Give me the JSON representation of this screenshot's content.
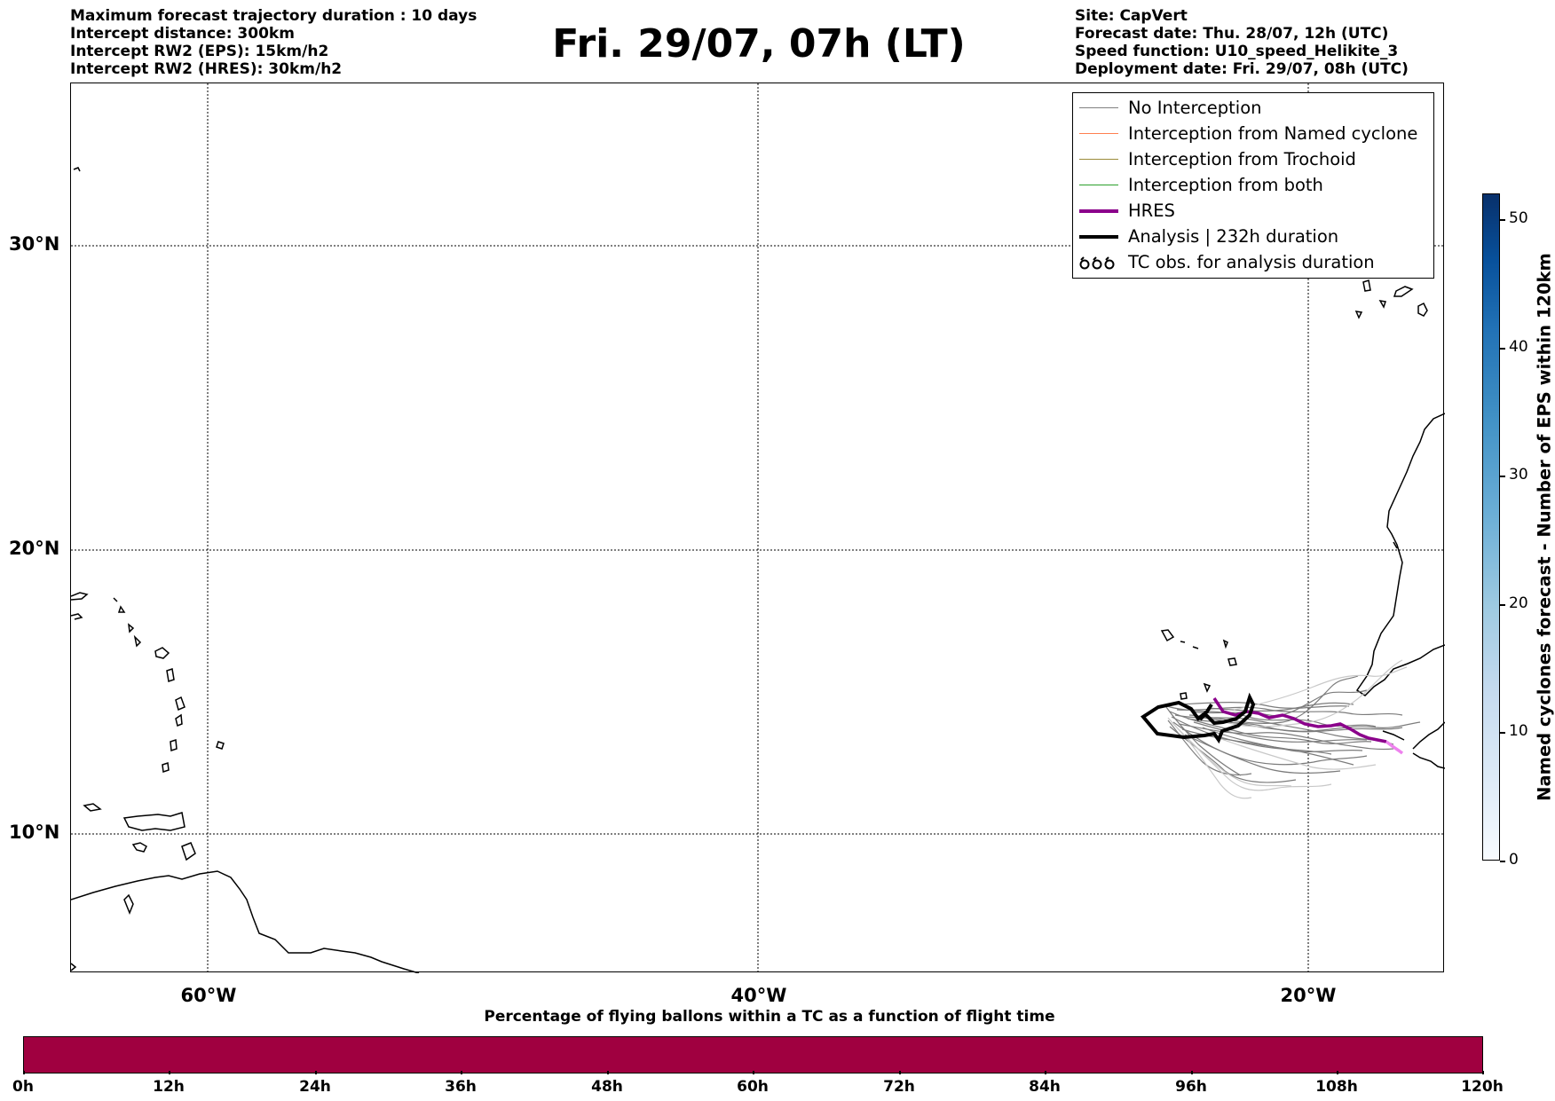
{
  "header": {
    "left": [
      "Maximum forecast trajectory duration : 10 days",
      "Intercept distance: 300km",
      "Intercept RW2 (EPS):  15km/h2",
      "Intercept RW2 (HRES): 30km/h2"
    ],
    "title": "Fri. 29/07, 07h (LT)",
    "right": [
      "Site: CapVert",
      "Forecast date: Thu. 28/07, 12h (UTC)",
      "Speed function: U10_speed_Helikite_3",
      "Deployment date: Fri. 29/07, 08h (UTC)"
    ]
  },
  "map": {
    "lat_labels": [
      "30°N",
      "20°N",
      "10°N"
    ],
    "lon_labels": [
      "60°W",
      "40°W",
      "20°W"
    ],
    "gridlines": true
  },
  "legend": {
    "items": [
      {
        "label": "No Interception",
        "color": "#808080"
      },
      {
        "label": "Interception from Named cyclone",
        "color": "#ff7f50"
      },
      {
        "label": "Interception from Trochoid",
        "color": "#9b8b3a"
      },
      {
        "label": "Interception from both",
        "color": "#2ca02c"
      },
      {
        "label": "HRES",
        "color": "#8b008b"
      },
      {
        "label": "Analysis | 232h duration",
        "color": "#000000"
      },
      {
        "label": "TC obs. for analysis duration",
        "symbol": "tc-symbol-icon"
      }
    ]
  },
  "colorbar_right": {
    "label": "Named cyclones forecast - Number of EPS within 120km",
    "ticks": [
      "0",
      "10",
      "20",
      "30",
      "40",
      "50"
    ],
    "colors": [
      "#f7fbff",
      "#08306b"
    ]
  },
  "colorbar_bottom": {
    "title": "Percentage of flying ballons within a TC as a function of flight time",
    "ticks": [
      "0h",
      "12h",
      "24h",
      "36h",
      "48h",
      "60h",
      "72h",
      "84h",
      "96h",
      "108h",
      "120h"
    ],
    "color": "#a00040"
  }
}
